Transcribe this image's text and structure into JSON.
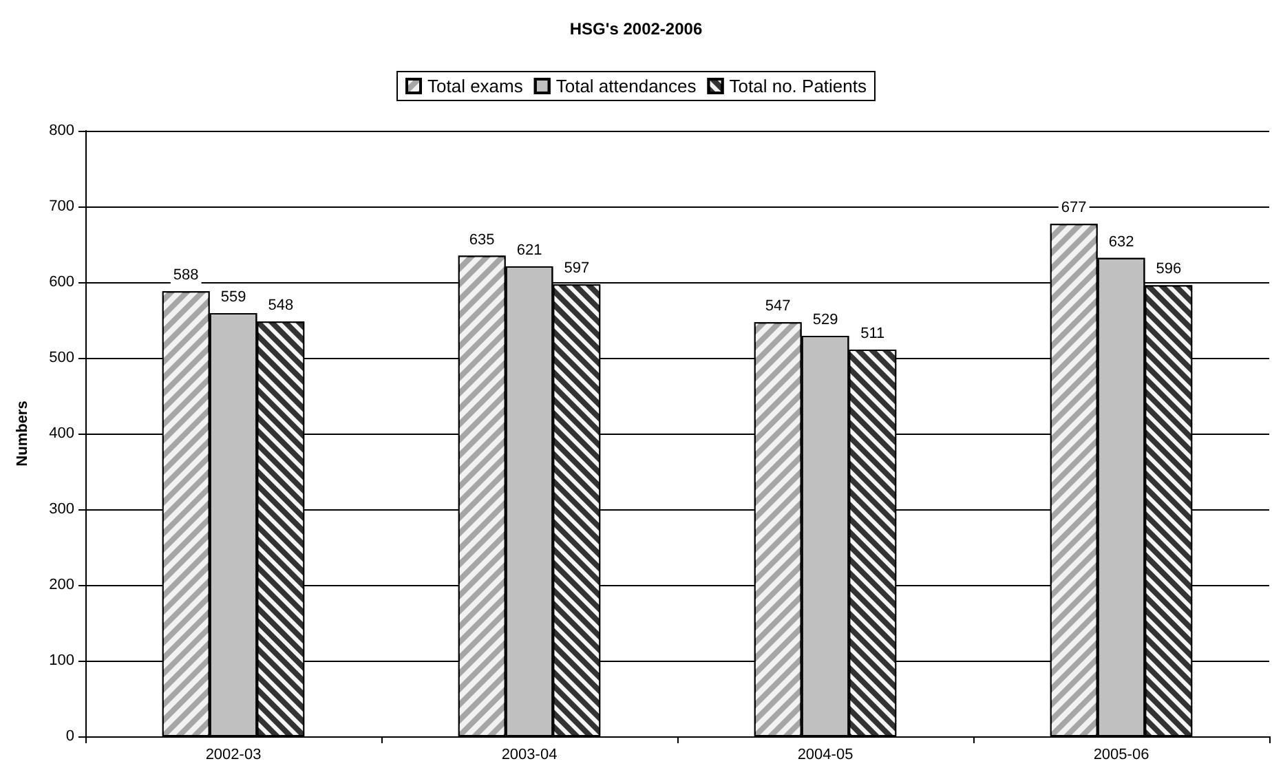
{
  "chart_data": {
    "type": "bar",
    "title": "HSG's 2002-2006",
    "ylabel": "Numbers",
    "categories": [
      "2002-03",
      "2003-04",
      "2004-05",
      "2005-06"
    ],
    "series": [
      {
        "name": "Total exams",
        "color": "#a6a6a6",
        "values": [
          588,
          635,
          547,
          677
        ]
      },
      {
        "name": "Total attendances",
        "color": "#c0c0c0",
        "values": [
          559,
          621,
          529,
          632
        ]
      },
      {
        "name": "Total no. Patients",
        "color": "#333333",
        "values": [
          548,
          597,
          511,
          596
        ]
      }
    ],
    "ylim": [
      0,
      800
    ],
    "yticks": [
      0,
      100,
      200,
      300,
      400,
      500,
      600,
      700,
      800
    ],
    "grid": "y",
    "legend": "top",
    "data_labels": true
  }
}
